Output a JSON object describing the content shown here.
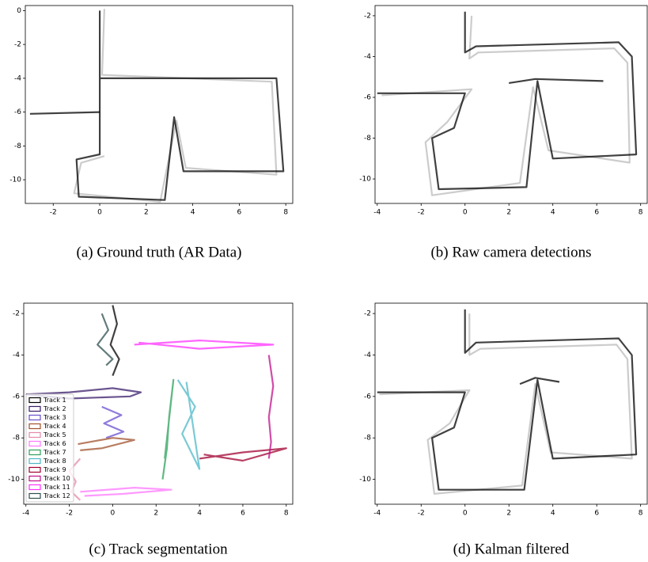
{
  "chart_data": [
    {
      "type": "line",
      "caption": "(a) Ground truth (AR Data)",
      "xlim": [
        -3.2,
        8.3
      ],
      "ylim": [
        -11.4,
        0.3
      ],
      "xticks": [
        -2,
        0,
        2,
        4,
        6,
        8
      ],
      "yticks": [
        0,
        -2,
        -4,
        -6,
        -8,
        -10
      ],
      "series": [
        {
          "color": "#bbbbbb",
          "x": [
            0.2,
            0.1,
            7.4,
            7.6,
            3.7,
            3.3,
            2.6,
            -1.1,
            -0.8,
            0.2
          ],
          "y": [
            0.1,
            -3.8,
            -4.2,
            -9.7,
            -9.3,
            -6.5,
            -11.3,
            -10.8,
            -9,
            -8.6
          ]
        },
        {
          "color": "#000000",
          "x": [
            0,
            0,
            7.6,
            7.9,
            3.6,
            3.2,
            2.8,
            -0.9,
            -1,
            0,
            0
          ],
          "y": [
            0,
            -4,
            -4,
            -9.5,
            -9.5,
            -6.3,
            -11.2,
            -11,
            -8.8,
            -8.5,
            -4
          ]
        },
        {
          "color": "#000000",
          "x": [
            -3,
            0
          ],
          "y": [
            -6.1,
            -6
          ]
        }
      ]
    },
    {
      "type": "line",
      "caption": "(b) Raw camera detections",
      "xlim": [
        -4.1,
        8.3
      ],
      "ylim": [
        -11.2,
        -1.5
      ],
      "xticks": [
        -4,
        -2,
        0,
        2,
        4,
        6,
        8
      ],
      "yticks": [
        -2,
        -4,
        -6,
        -8,
        -10
      ],
      "series": [
        {
          "color": "#bbbbbb",
          "x": [
            0.3,
            0.2,
            0.6,
            6.8,
            7.4,
            7.5,
            3.8,
            3.1,
            2.5,
            -1.5,
            -1.8,
            -0.8,
            0.3,
            -3.8
          ],
          "y": [
            -2,
            -4.1,
            -3.8,
            -3.6,
            -4.3,
            -9.2,
            -8.6,
            -5.5,
            -10.2,
            -10.8,
            -8.2,
            -7.2,
            -5.6,
            -5.9
          ]
        },
        {
          "color": "#000000",
          "x": [
            0,
            0,
            0.5,
            7,
            7.6,
            7.8,
            4,
            3.3,
            2.8,
            -1.2,
            -1.5,
            -0.5,
            0,
            -4
          ],
          "y": [
            -1.8,
            -3.8,
            -3.5,
            -3.3,
            -4,
            -8.8,
            -9,
            -5.2,
            -10.4,
            -10.5,
            -8,
            -7.5,
            -5.8,
            -5.8
          ]
        },
        {
          "color": "#000000",
          "x": [
            2,
            3.2,
            6.3
          ],
          "y": [
            -5.3,
            -5.1,
            -5.2
          ]
        }
      ]
    },
    {
      "type": "line",
      "caption": "(c) Track segmentation",
      "xlim": [
        -4.1,
        8.3
      ],
      "ylim": [
        -11.2,
        -1.5
      ],
      "xticks": [
        -4,
        -2,
        0,
        2,
        4,
        6,
        8
      ],
      "yticks": [
        -2,
        -4,
        -6,
        -8,
        -10
      ],
      "legend": "lower left",
      "series": [
        {
          "name": "Track 1",
          "color": "#000000",
          "x": [
            0,
            0.2,
            -0.1,
            0.3,
            0
          ],
          "y": [
            -1.6,
            -2.5,
            -3.5,
            -4.2,
            -5
          ]
        },
        {
          "name": "Track 2",
          "color": "#3a1c6b",
          "x": [
            -4,
            -2,
            0,
            1.3,
            0.8,
            -2,
            -4
          ],
          "y": [
            -5.9,
            -5.8,
            -5.6,
            -5.8,
            -6,
            -6.1,
            -5.9
          ]
        },
        {
          "name": "Track 3",
          "color": "#6a4fd0",
          "x": [
            -0.5,
            0.4,
            -0.4,
            0.5,
            -0.3
          ],
          "y": [
            -6.5,
            -6.9,
            -7.3,
            -7.7,
            -8
          ]
        },
        {
          "name": "Track 4",
          "color": "#a0522d",
          "x": [
            -1.6,
            0,
            1,
            -0.5,
            -1.5
          ],
          "y": [
            -8.3,
            -8,
            -8.1,
            -8.5,
            -8.6
          ]
        },
        {
          "name": "Track 5",
          "color": "#e48aa8",
          "x": [
            -1.5,
            -2,
            -1.7,
            -1.9,
            -1.5
          ],
          "y": [
            -9,
            -9.6,
            -10.1,
            -10.6,
            -11
          ]
        },
        {
          "name": "Track 6",
          "color": "#ff77ff",
          "x": [
            -1.5,
            1,
            2.7,
            0.5,
            -1.3
          ],
          "y": [
            -10.6,
            -10.4,
            -10.5,
            -10.7,
            -10.8
          ]
        },
        {
          "name": "Track 7",
          "color": "#2ca05a",
          "x": [
            2.3,
            2.5,
            2.6,
            2.8,
            2.4
          ],
          "y": [
            -10,
            -8.5,
            -7,
            -5.2,
            -9
          ]
        },
        {
          "name": "Track 8",
          "color": "#4db8c8",
          "x": [
            3,
            3.8,
            3.2,
            4,
            3.4
          ],
          "y": [
            -5.2,
            -6.5,
            -7.8,
            -9.5,
            -5.3
          ]
        },
        {
          "name": "Track 9",
          "color": "#a00030",
          "x": [
            4,
            6,
            8,
            6,
            4.2
          ],
          "y": [
            -9,
            -8.7,
            -8.5,
            -9.1,
            -8.8
          ]
        },
        {
          "name": "Track 10",
          "color": "#c0108a",
          "x": [
            7.2,
            7.4,
            7.2,
            7.3,
            7.2
          ],
          "y": [
            -4,
            -5.5,
            -7,
            -8.2,
            -9
          ]
        },
        {
          "name": "Track 11",
          "color": "#ff33ff",
          "x": [
            1,
            4,
            7.4,
            4,
            1.2
          ],
          "y": [
            -3.5,
            -3.3,
            -3.5,
            -3.7,
            -3.4
          ]
        },
        {
          "name": "Track 12",
          "color": "#2f4f4f",
          "x": [
            -0.5,
            -0.2,
            -0.7,
            0,
            -0.3
          ],
          "y": [
            -2,
            -2.8,
            -3.5,
            -4.2,
            -4.5
          ]
        }
      ]
    },
    {
      "type": "line",
      "caption": "(d) Kalman filtered",
      "xlim": [
        -4.1,
        8.3
      ],
      "ylim": [
        -11.2,
        -1.5
      ],
      "xticks": [
        -4,
        -2,
        0,
        2,
        4,
        6,
        8
      ],
      "yticks": [
        -2,
        -4,
        -6,
        -8,
        -10
      ],
      "series": [
        {
          "color": "#bbbbbb",
          "x": [
            0.2,
            0.2,
            0.7,
            6.9,
            7.4,
            7.6,
            3.9,
            3.2,
            2.6,
            -1.4,
            -1.7,
            -0.7,
            0.2,
            -3.9
          ],
          "y": [
            -2,
            -4,
            -3.7,
            -3.5,
            -4.2,
            -9,
            -8.7,
            -5.4,
            -10.3,
            -10.7,
            -8.1,
            -7.3,
            -5.7,
            -5.9
          ]
        },
        {
          "color": "#000000",
          "x": [
            0,
            0,
            0.5,
            7,
            7.6,
            7.8,
            4,
            3.3,
            2.7,
            -1.2,
            -1.5,
            -0.5,
            0,
            -4
          ],
          "y": [
            -1.8,
            -3.9,
            -3.4,
            -3.2,
            -4,
            -8.8,
            -9,
            -5.2,
            -10.5,
            -10.5,
            -8,
            -7.5,
            -5.8,
            -5.8
          ]
        },
        {
          "color": "#000000",
          "x": [
            2.5,
            3.2,
            4.3
          ],
          "y": [
            -5.4,
            -5.1,
            -5.3
          ]
        }
      ]
    }
  ]
}
